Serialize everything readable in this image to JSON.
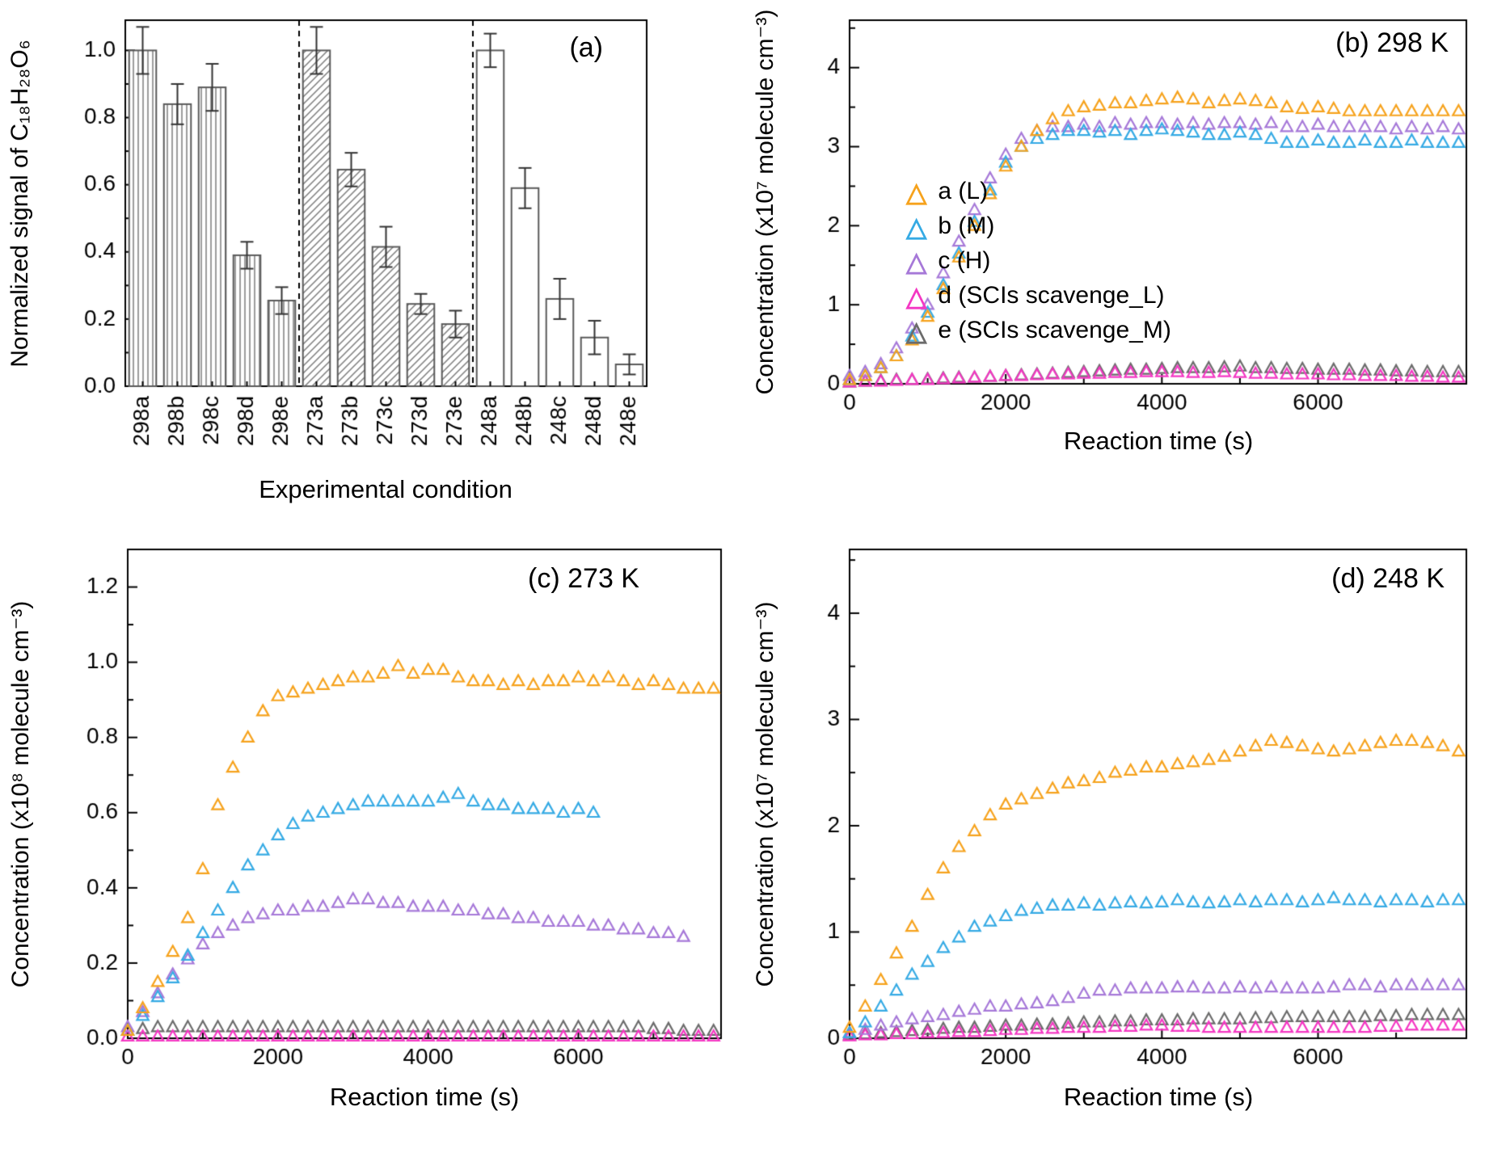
{
  "chart_data": [
    {
      "id": "a",
      "type": "bar",
      "panel_label": "(a)",
      "xlabel": "Experimental condition",
      "ylabel": "Normalized signal of C₁₈H₂₈O₆",
      "ylim": [
        0,
        1.09
      ],
      "yticks": [
        0,
        0.2,
        0.4,
        0.6,
        0.8,
        1.0
      ],
      "ytick_labels": [
        "0.0",
        "0.2",
        "0.4",
        "0.6",
        "0.8",
        "1.0"
      ],
      "yminor": [
        0.1,
        0.3,
        0.5,
        0.7,
        0.9
      ],
      "separators": [
        5,
        10
      ],
      "bars": [
        {
          "label": "298a",
          "value": 1.0,
          "err": 0.07,
          "hatch": "v"
        },
        {
          "label": "298b",
          "value": 0.84,
          "err": 0.06,
          "hatch": "v"
        },
        {
          "label": "298c",
          "value": 0.89,
          "err": 0.07,
          "hatch": "v"
        },
        {
          "label": "298d",
          "value": 0.39,
          "err": 0.04,
          "hatch": "v"
        },
        {
          "label": "298e",
          "value": 0.255,
          "err": 0.04,
          "hatch": "v"
        },
        {
          "label": "273a",
          "value": 1.0,
          "err": 0.07,
          "hatch": "d"
        },
        {
          "label": "273b",
          "value": 0.645,
          "err": 0.05,
          "hatch": "d"
        },
        {
          "label": "273c",
          "value": 0.415,
          "err": 0.06,
          "hatch": "d"
        },
        {
          "label": "273d",
          "value": 0.245,
          "err": 0.03,
          "hatch": "d"
        },
        {
          "label": "273e",
          "value": 0.185,
          "err": 0.04,
          "hatch": "d"
        },
        {
          "label": "248a",
          "value": 1.0,
          "err": 0.05,
          "hatch": "none"
        },
        {
          "label": "248b",
          "value": 0.59,
          "err": 0.06,
          "hatch": "none"
        },
        {
          "label": "248c",
          "value": 0.26,
          "err": 0.06,
          "hatch": "none"
        },
        {
          "label": "248d",
          "value": 0.145,
          "err": 0.05,
          "hatch": "none"
        },
        {
          "label": "248e",
          "value": 0.065,
          "err": 0.03,
          "hatch": "none"
        }
      ]
    },
    {
      "id": "b",
      "type": "scatter",
      "panel_label": "(b) 298 K",
      "xlabel": "Reaction time (s)",
      "ylabel": "Concentration (x10⁷ molecule cm⁻³)",
      "xlim": [
        0,
        7900
      ],
      "ylim": [
        0,
        4.6
      ],
      "xticks": [
        0,
        2000,
        4000,
        6000
      ],
      "xtick_labels": [
        "0",
        "2000",
        "4000",
        "6000"
      ],
      "xminor": [
        1000,
        3000,
        5000,
        7000
      ],
      "yticks": [
        0,
        1,
        2,
        3,
        4
      ],
      "ytick_labels": [
        "0",
        "1",
        "2",
        "3",
        "4"
      ],
      "yminor": [
        0.5,
        1.5,
        2.5,
        3.5,
        4.5
      ],
      "marker": "open-triangle",
      "legend": {
        "marker_glyph": "△",
        "position": "inside-center-left",
        "entries": [
          {
            "label": "a (L)",
            "color": "#F6A21C"
          },
          {
            "label": "b (M)",
            "color": "#35AAE4"
          },
          {
            "label": "c (H)",
            "color": "#A678D8"
          },
          {
            "label": "d (SCIs scavenge_L)",
            "color": "#F437C3"
          },
          {
            "label": "e (SCIs scavenge_M)",
            "color": "#6B6B6B"
          }
        ]
      },
      "series": [
        {
          "name": "a (L)",
          "color": "#F6A21C",
          "x0": 0,
          "dx": 200,
          "y": [
            0.05,
            0.1,
            0.2,
            0.35,
            0.55,
            0.85,
            1.2,
            1.6,
            2.0,
            2.4,
            2.75,
            3.0,
            3.2,
            3.35,
            3.45,
            3.5,
            3.52,
            3.55,
            3.55,
            3.58,
            3.6,
            3.62,
            3.6,
            3.55,
            3.58,
            3.6,
            3.58,
            3.55,
            3.5,
            3.48,
            3.5,
            3.48,
            3.45,
            3.45,
            3.45,
            3.45,
            3.45,
            3.45,
            3.45,
            3.45
          ]
        },
        {
          "name": "b (M)",
          "color": "#35AAE4",
          "x0": 0,
          "dx": 200,
          "y": [
            0.05,
            0.1,
            0.2,
            0.35,
            0.6,
            0.9,
            1.25,
            1.65,
            2.05,
            2.45,
            2.8,
            3.0,
            3.1,
            3.15,
            3.2,
            3.2,
            3.18,
            3.2,
            3.15,
            3.2,
            3.22,
            3.2,
            3.18,
            3.15,
            3.15,
            3.18,
            3.15,
            3.1,
            3.05,
            3.05,
            3.08,
            3.05,
            3.05,
            3.08,
            3.05,
            3.05,
            3.08,
            3.05,
            3.05,
            3.05
          ]
        },
        {
          "name": "c (H)",
          "color": "#A678D8",
          "x0": 0,
          "dx": 200,
          "y": [
            0.1,
            0.15,
            0.25,
            0.45,
            0.7,
            1.0,
            1.4,
            1.8,
            2.2,
            2.6,
            2.9,
            3.1,
            3.2,
            3.25,
            3.25,
            3.28,
            3.25,
            3.3,
            3.28,
            3.3,
            3.3,
            3.28,
            3.3,
            3.28,
            3.3,
            3.3,
            3.28,
            3.3,
            3.25,
            3.25,
            3.28,
            3.25,
            3.25,
            3.25,
            3.25,
            3.22,
            3.25,
            3.22,
            3.25,
            3.22
          ]
        },
        {
          "name": "d (SCIs scavenge_L)",
          "color": "#F437C3",
          "x0": 0,
          "dx": 200,
          "y": [
            0.02,
            0.03,
            0.03,
            0.04,
            0.05,
            0.05,
            0.06,
            0.07,
            0.08,
            0.09,
            0.1,
            0.1,
            0.11,
            0.12,
            0.12,
            0.13,
            0.13,
            0.14,
            0.14,
            0.15,
            0.15,
            0.15,
            0.14,
            0.14,
            0.15,
            0.14,
            0.13,
            0.13,
            0.12,
            0.12,
            0.12,
            0.11,
            0.11,
            0.1,
            0.1,
            0.1,
            0.09,
            0.09,
            0.08,
            0.08
          ]
        },
        {
          "name": "e (SCIs scavenge_M)",
          "color": "#6B6B6B",
          "x0": 0,
          "dx": 200,
          "y": [
            0.02,
            0.03,
            0.04,
            0.05,
            0.05,
            0.06,
            0.07,
            0.08,
            0.08,
            0.09,
            0.1,
            0.11,
            0.12,
            0.13,
            0.14,
            0.15,
            0.16,
            0.17,
            0.18,
            0.18,
            0.19,
            0.2,
            0.2,
            0.2,
            0.21,
            0.22,
            0.2,
            0.2,
            0.19,
            0.19,
            0.18,
            0.18,
            0.18,
            0.17,
            0.17,
            0.16,
            0.16,
            0.15,
            0.15,
            0.15
          ]
        }
      ]
    },
    {
      "id": "c",
      "type": "scatter",
      "panel_label": "(c) 273 K",
      "xlabel": "Reaction time (s)",
      "ylabel": "Concentration (x10⁸ molecule cm⁻³)",
      "xlim": [
        0,
        7900
      ],
      "ylim": [
        0,
        1.3
      ],
      "xticks": [
        0,
        2000,
        4000,
        6000
      ],
      "xtick_labels": [
        "0",
        "2000",
        "4000",
        "6000"
      ],
      "xminor": [
        1000,
        3000,
        5000,
        7000
      ],
      "yticks": [
        0,
        0.2,
        0.4,
        0.6,
        0.8,
        1.0,
        1.2
      ],
      "ytick_labels": [
        "0.0",
        "0.2",
        "0.4",
        "0.6",
        "0.8",
        "1.0",
        "1.2"
      ],
      "yminor": [
        0.1,
        0.3,
        0.5,
        0.7,
        0.9,
        1.1
      ],
      "marker": "open-triangle",
      "series": [
        {
          "name": "a (L)",
          "color": "#F6A21C",
          "x0": 0,
          "dx": 200,
          "y": [
            0.02,
            0.08,
            0.15,
            0.23,
            0.32,
            0.45,
            0.62,
            0.72,
            0.8,
            0.87,
            0.91,
            0.92,
            0.93,
            0.94,
            0.95,
            0.96,
            0.96,
            0.97,
            0.99,
            0.97,
            0.98,
            0.98,
            0.96,
            0.95,
            0.95,
            0.94,
            0.95,
            0.94,
            0.95,
            0.95,
            0.96,
            0.95,
            0.96,
            0.95,
            0.94,
            0.95,
            0.94,
            0.93,
            0.93,
            0.93
          ]
        },
        {
          "name": "b (M)",
          "color": "#35AAE4",
          "x0": 0,
          "dx": 200,
          "y": [
            0.02,
            0.06,
            0.11,
            0.16,
            0.22,
            0.28,
            0.34,
            0.4,
            0.46,
            0.5,
            0.54,
            0.57,
            0.59,
            0.6,
            0.61,
            0.62,
            0.63,
            0.63,
            0.63,
            0.63,
            0.63,
            0.64,
            0.65,
            0.63,
            0.62,
            0.62,
            0.61,
            0.61,
            0.61,
            0.6,
            0.61,
            0.6
          ]
        },
        {
          "name": "c (H)",
          "color": "#A678D8",
          "x0": 0,
          "dx": 200,
          "y": [
            0.03,
            0.07,
            0.12,
            0.17,
            0.21,
            0.25,
            0.28,
            0.3,
            0.32,
            0.33,
            0.34,
            0.34,
            0.35,
            0.35,
            0.36,
            0.37,
            0.37,
            0.36,
            0.36,
            0.35,
            0.35,
            0.35,
            0.34,
            0.34,
            0.33,
            0.33,
            0.32,
            0.32,
            0.31,
            0.31,
            0.31,
            0.3,
            0.3,
            0.29,
            0.29,
            0.28,
            0.28,
            0.27
          ]
        },
        {
          "name": "d (SCIs scavenge_L)",
          "color": "#F437C3",
          "x0": 0,
          "dx": 200,
          "y": [
            0.005,
            0.005,
            0.005,
            0.005,
            0.005,
            0.005,
            0.005,
            0.005,
            0.005,
            0.005,
            0.005,
            0.005,
            0.005,
            0.005,
            0.005,
            0.005,
            0.005,
            0.005,
            0.005,
            0.005,
            0.005,
            0.005,
            0.005,
            0.005,
            0.005,
            0.005,
            0.005,
            0.005,
            0.005,
            0.005,
            0.005,
            0.005,
            0.005,
            0.005,
            0.005,
            0.005,
            0.005,
            0.005,
            0.005,
            0.005
          ]
        },
        {
          "name": "e (SCIs scavenge_M)",
          "color": "#6B6B6B",
          "x0": 0,
          "dx": 200,
          "y": [
            0.02,
            0.025,
            0.03,
            0.03,
            0.03,
            0.03,
            0.03,
            0.03,
            0.03,
            0.03,
            0.03,
            0.03,
            0.03,
            0.03,
            0.03,
            0.03,
            0.03,
            0.03,
            0.03,
            0.03,
            0.03,
            0.03,
            0.03,
            0.03,
            0.03,
            0.03,
            0.03,
            0.03,
            0.03,
            0.03,
            0.03,
            0.03,
            0.03,
            0.03,
            0.03,
            0.025,
            0.025,
            0.02,
            0.02,
            0.02
          ]
        }
      ]
    },
    {
      "id": "d",
      "type": "scatter",
      "panel_label": "(d) 248 K",
      "xlabel": "Reaction time (s)",
      "ylabel": "Concentration (x10⁷ molecule cm⁻³)",
      "xlim": [
        0,
        7900
      ],
      "ylim": [
        0,
        4.6
      ],
      "xticks": [
        0,
        2000,
        4000,
        6000
      ],
      "xtick_labels": [
        "0",
        "2000",
        "4000",
        "6000"
      ],
      "xminor": [
        1000,
        3000,
        5000,
        7000
      ],
      "yticks": [
        0,
        1,
        2,
        3,
        4
      ],
      "ytick_labels": [
        "0",
        "1",
        "2",
        "3",
        "4"
      ],
      "yminor": [
        0.5,
        1.5,
        2.5,
        3.5,
        4.5
      ],
      "marker": "open-triangle",
      "series": [
        {
          "name": "a (L)",
          "color": "#F6A21C",
          "x0": 0,
          "dx": 200,
          "y": [
            0.1,
            0.3,
            0.55,
            0.8,
            1.05,
            1.35,
            1.6,
            1.8,
            1.95,
            2.1,
            2.2,
            2.25,
            2.3,
            2.35,
            2.4,
            2.42,
            2.45,
            2.5,
            2.52,
            2.55,
            2.55,
            2.58,
            2.6,
            2.62,
            2.65,
            2.7,
            2.75,
            2.8,
            2.78,
            2.75,
            2.72,
            2.7,
            2.72,
            2.75,
            2.78,
            2.8,
            2.8,
            2.78,
            2.75,
            2.7
          ]
        },
        {
          "name": "b (M)",
          "color": "#35AAE4",
          "x0": 0,
          "dx": 200,
          "y": [
            0.05,
            0.15,
            0.3,
            0.45,
            0.6,
            0.72,
            0.85,
            0.95,
            1.05,
            1.1,
            1.15,
            1.2,
            1.22,
            1.25,
            1.25,
            1.27,
            1.25,
            1.27,
            1.28,
            1.27,
            1.28,
            1.3,
            1.28,
            1.27,
            1.28,
            1.3,
            1.28,
            1.3,
            1.3,
            1.28,
            1.3,
            1.32,
            1.3,
            1.3,
            1.28,
            1.3,
            1.3,
            1.28,
            1.3,
            1.3
          ]
        },
        {
          "name": "c (H)",
          "color": "#A678D8",
          "x0": 0,
          "dx": 200,
          "y": [
            0.05,
            0.08,
            0.12,
            0.15,
            0.18,
            0.2,
            0.22,
            0.25,
            0.27,
            0.3,
            0.3,
            0.32,
            0.33,
            0.35,
            0.38,
            0.42,
            0.45,
            0.45,
            0.47,
            0.47,
            0.47,
            0.48,
            0.48,
            0.47,
            0.47,
            0.48,
            0.47,
            0.48,
            0.47,
            0.47,
            0.47,
            0.48,
            0.5,
            0.5,
            0.48,
            0.5,
            0.5,
            0.5,
            0.5,
            0.5
          ]
        },
        {
          "name": "d (SCIs scavenge_L)",
          "color": "#F437C3",
          "x0": 0,
          "dx": 200,
          "y": [
            0.02,
            0.03,
            0.03,
            0.04,
            0.04,
            0.05,
            0.05,
            0.06,
            0.06,
            0.07,
            0.08,
            0.08,
            0.09,
            0.09,
            0.1,
            0.1,
            0.1,
            0.11,
            0.11,
            0.12,
            0.12,
            0.11,
            0.11,
            0.1,
            0.1,
            0.1,
            0.1,
            0.1,
            0.1,
            0.1,
            0.1,
            0.1,
            0.1,
            0.1,
            0.11,
            0.11,
            0.12,
            0.12,
            0.12,
            0.12
          ]
        },
        {
          "name": "e (SCIs scavenge_M)",
          "color": "#6B6B6B",
          "x0": 0,
          "dx": 200,
          "y": [
            0.03,
            0.04,
            0.05,
            0.06,
            0.07,
            0.08,
            0.09,
            0.1,
            0.1,
            0.11,
            0.12,
            0.12,
            0.13,
            0.13,
            0.14,
            0.15,
            0.15,
            0.16,
            0.16,
            0.17,
            0.17,
            0.17,
            0.18,
            0.18,
            0.18,
            0.18,
            0.19,
            0.19,
            0.2,
            0.2,
            0.2,
            0.2,
            0.2,
            0.2,
            0.21,
            0.21,
            0.22,
            0.22,
            0.22,
            0.22
          ]
        }
      ]
    }
  ]
}
